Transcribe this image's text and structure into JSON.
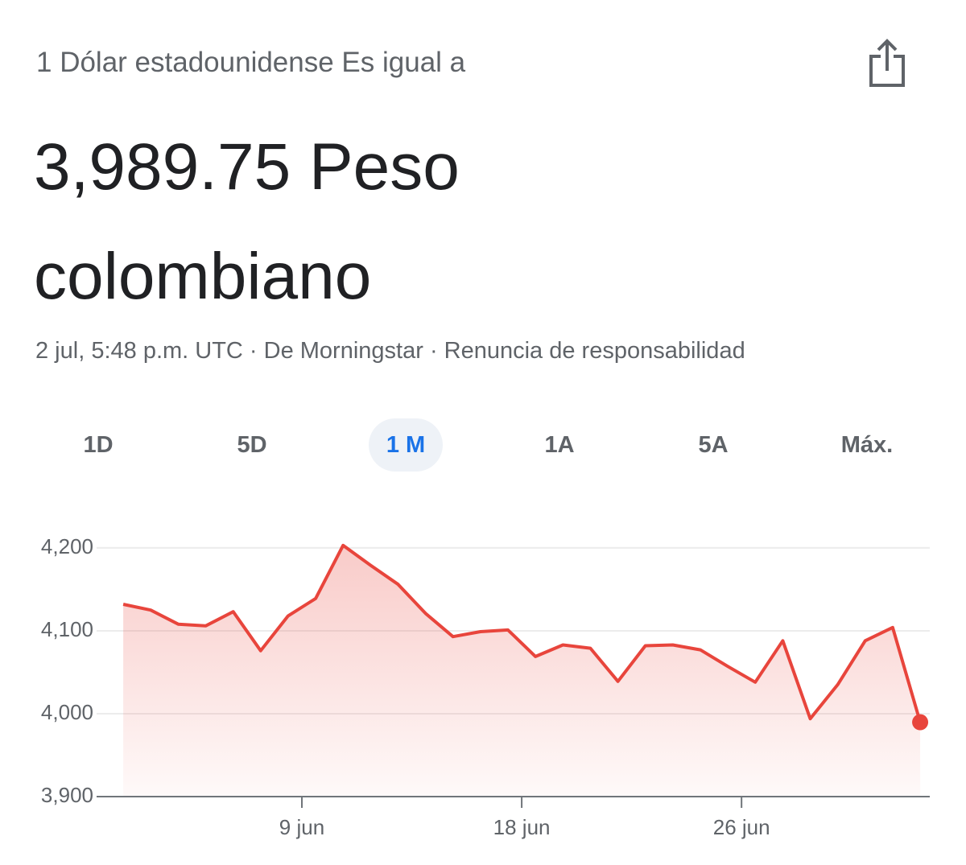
{
  "header": {
    "subtitle": "1 Dólar estadounidense Es igual a",
    "amount": "3,989.75 Peso colombiano",
    "source": "2 jul, 5:48 p.m. UTC · De Morningstar · Renuncia de responsabilidad"
  },
  "tabs": {
    "items": [
      "1D",
      "5D",
      "1 M",
      "1A",
      "5A",
      "Máx."
    ],
    "selected": 2
  },
  "chart_data": {
    "type": "line",
    "color": "#e8453c",
    "x": [
      0,
      1,
      2,
      3,
      4,
      5,
      6,
      7,
      8,
      9,
      10,
      11,
      12,
      13,
      14,
      15,
      16,
      17,
      18,
      19,
      20,
      21,
      22,
      23,
      24,
      25,
      26,
      27,
      28,
      29
    ],
    "values": [
      4132,
      4125,
      4108,
      4106,
      4123,
      4076,
      4118,
      4139,
      4203,
      4179,
      4156,
      4121,
      4093,
      4099,
      4101,
      4069,
      4083,
      4079,
      4039,
      4082,
      4083,
      4077,
      4057,
      4038,
      4088,
      3994,
      4035,
      4088,
      4104,
      3989.75
    ],
    "xlim": [
      -0.97,
      29.35
    ],
    "xticks": [
      {
        "value": 6.5,
        "label": "9 jun"
      },
      {
        "value": 14.5,
        "label": "18 jun"
      },
      {
        "value": 22.5,
        "label": "26 jun"
      }
    ],
    "ylim": [
      3900,
      4230
    ],
    "yticks": [
      {
        "value": 3900,
        "label": "3,900"
      },
      {
        "value": 4000,
        "label": "4,000"
      },
      {
        "value": 4100,
        "label": "4,100"
      },
      {
        "value": 4200,
        "label": "4,200"
      }
    ],
    "grid": true
  }
}
